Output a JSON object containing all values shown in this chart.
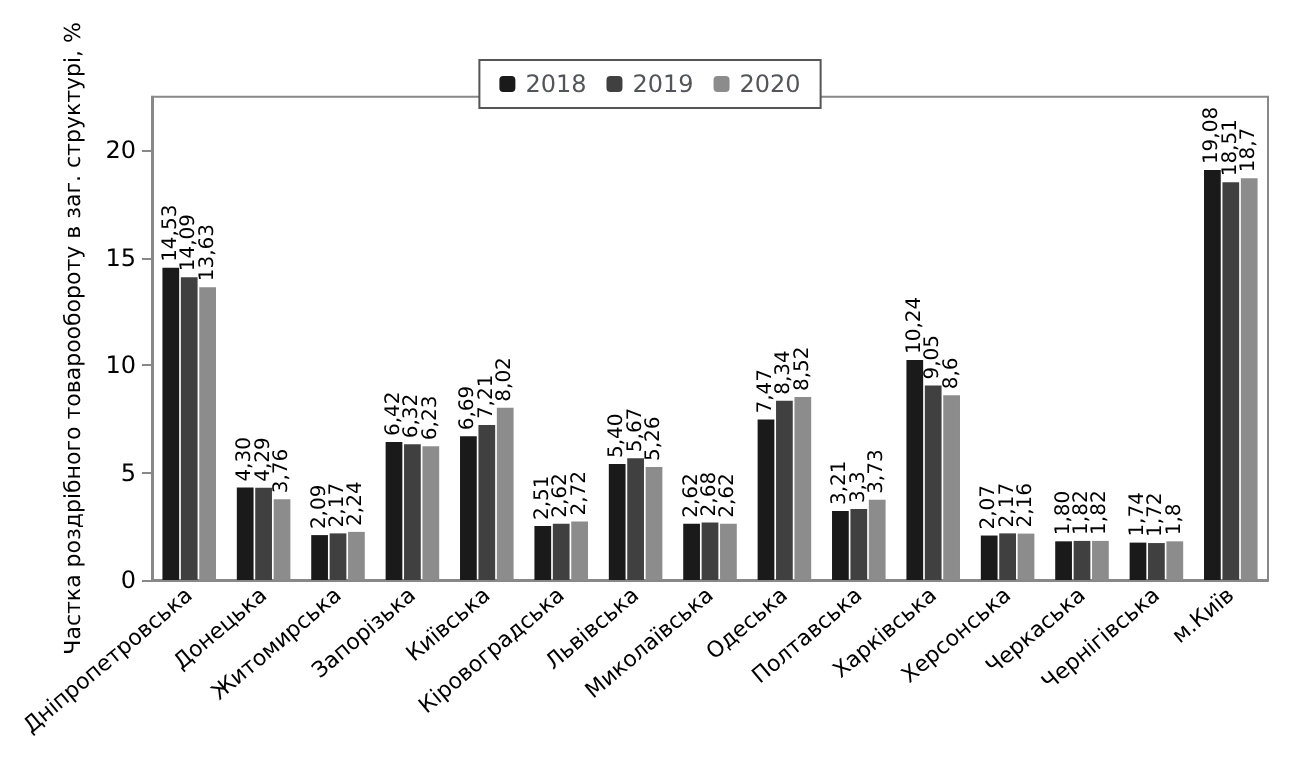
{
  "chart_data": {
    "type": "bar",
    "ylabel": "Частка роздрібного товарообороту в заг. структурі, %",
    "categories": [
      "Дніпропетровська",
      "Донецька",
      "Житомирська",
      "Запорізька",
      "Київська",
      "Кіровоградська",
      "Львівська",
      "Миколаївська",
      "Одеська",
      "Полтавська",
      "Харківська",
      "Херсонська",
      "Черкаська",
      "Чернігівська",
      "м.Київ"
    ],
    "series": [
      {
        "name": "2018",
        "color": "#1a1a1a",
        "values": [
          14.53,
          4.3,
          2.09,
          6.42,
          6.69,
          2.51,
          5.4,
          2.62,
          7.47,
          3.21,
          10.24,
          2.07,
          1.8,
          1.74,
          19.08
        ],
        "value_labels": [
          "14,53",
          "4,30",
          "2,09",
          "6,42",
          "6,69",
          "2,51",
          "5,40",
          "2,62",
          "7,47",
          "3,21",
          "10,24",
          "2,07",
          "1,80",
          "1,74",
          "19,08"
        ]
      },
      {
        "name": "2019",
        "color": "#404040",
        "values": [
          14.09,
          4.29,
          2.17,
          6.32,
          7.21,
          2.62,
          5.67,
          2.68,
          8.34,
          3.3,
          9.05,
          2.17,
          1.82,
          1.72,
          18.51
        ],
        "value_labels": [
          "14,09",
          "4,29",
          "2,17",
          "6,32",
          "7,21",
          "2,62",
          "5,67",
          "2,68",
          "8,34",
          "3,3",
          "9,05",
          "2,17",
          "1,82",
          "1,72",
          "18,51"
        ]
      },
      {
        "name": "2020",
        "color": "#8c8c8c",
        "values": [
          13.63,
          3.76,
          2.24,
          6.23,
          8.02,
          2.72,
          5.26,
          2.62,
          8.52,
          3.73,
          8.6,
          2.16,
          1.82,
          1.8,
          18.7
        ],
        "value_labels": [
          "13,63",
          "3,76",
          "2,24",
          "6,23",
          "8,02",
          "2,72",
          "5,26",
          "2,62",
          "8,52",
          "3,73",
          "8,6",
          "2,16",
          "1,82",
          "1,8",
          "18,7"
        ]
      }
    ],
    "ylim": [
      0,
      22.5
    ],
    "yticks": [
      0,
      5,
      10,
      15,
      20
    ],
    "grid": false,
    "legend": "top"
  }
}
